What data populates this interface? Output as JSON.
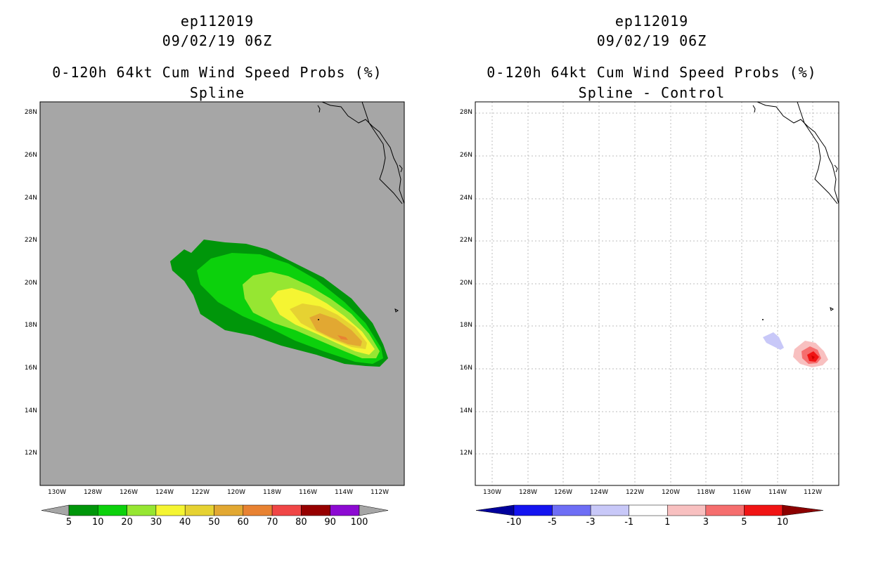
{
  "left": {
    "line1": "ep112019",
    "line2": "09/02/19 06Z",
    "line3": "0-120h 64kt Cum Wind Speed Probs (%)",
    "line4": "Spline",
    "colorbar": {
      "labels": [
        "5",
        "10",
        "20",
        "30",
        "40",
        "50",
        "60",
        "70",
        "80",
        "90",
        "100"
      ],
      "colors": [
        "#00960a",
        "#0cd10c",
        "#96e632",
        "#f5f532",
        "#e6d232",
        "#e2a832",
        "#e88232",
        "#f04646",
        "#960000",
        "#8c0ad2"
      ]
    }
  },
  "right": {
    "line1": "ep112019",
    "line2": "09/02/19 06Z",
    "line3": "0-120h 64kt Cum Wind Speed Probs (%)",
    "line4": "Spline - Control",
    "colorbar": {
      "labels": [
        "-10",
        "-5",
        "-3",
        "-1",
        "1",
        "3",
        "5",
        "10"
      ],
      "colors": [
        "#00009c",
        "#1414f0",
        "#6e6ef5",
        "#c8c8f8",
        "#ffffff",
        "#f8c0c0",
        "#f56e6e",
        "#f01414",
        "#8c0000"
      ]
    }
  },
  "axes": {
    "lat_labels": [
      "28N",
      "26N",
      "24N",
      "22N",
      "20N",
      "18N",
      "16N",
      "14N",
      "12N"
    ],
    "lon_labels": [
      "130W",
      "128W",
      "126W",
      "124W",
      "122W",
      "120W",
      "118W",
      "116W",
      "114W",
      "112W"
    ]
  }
}
